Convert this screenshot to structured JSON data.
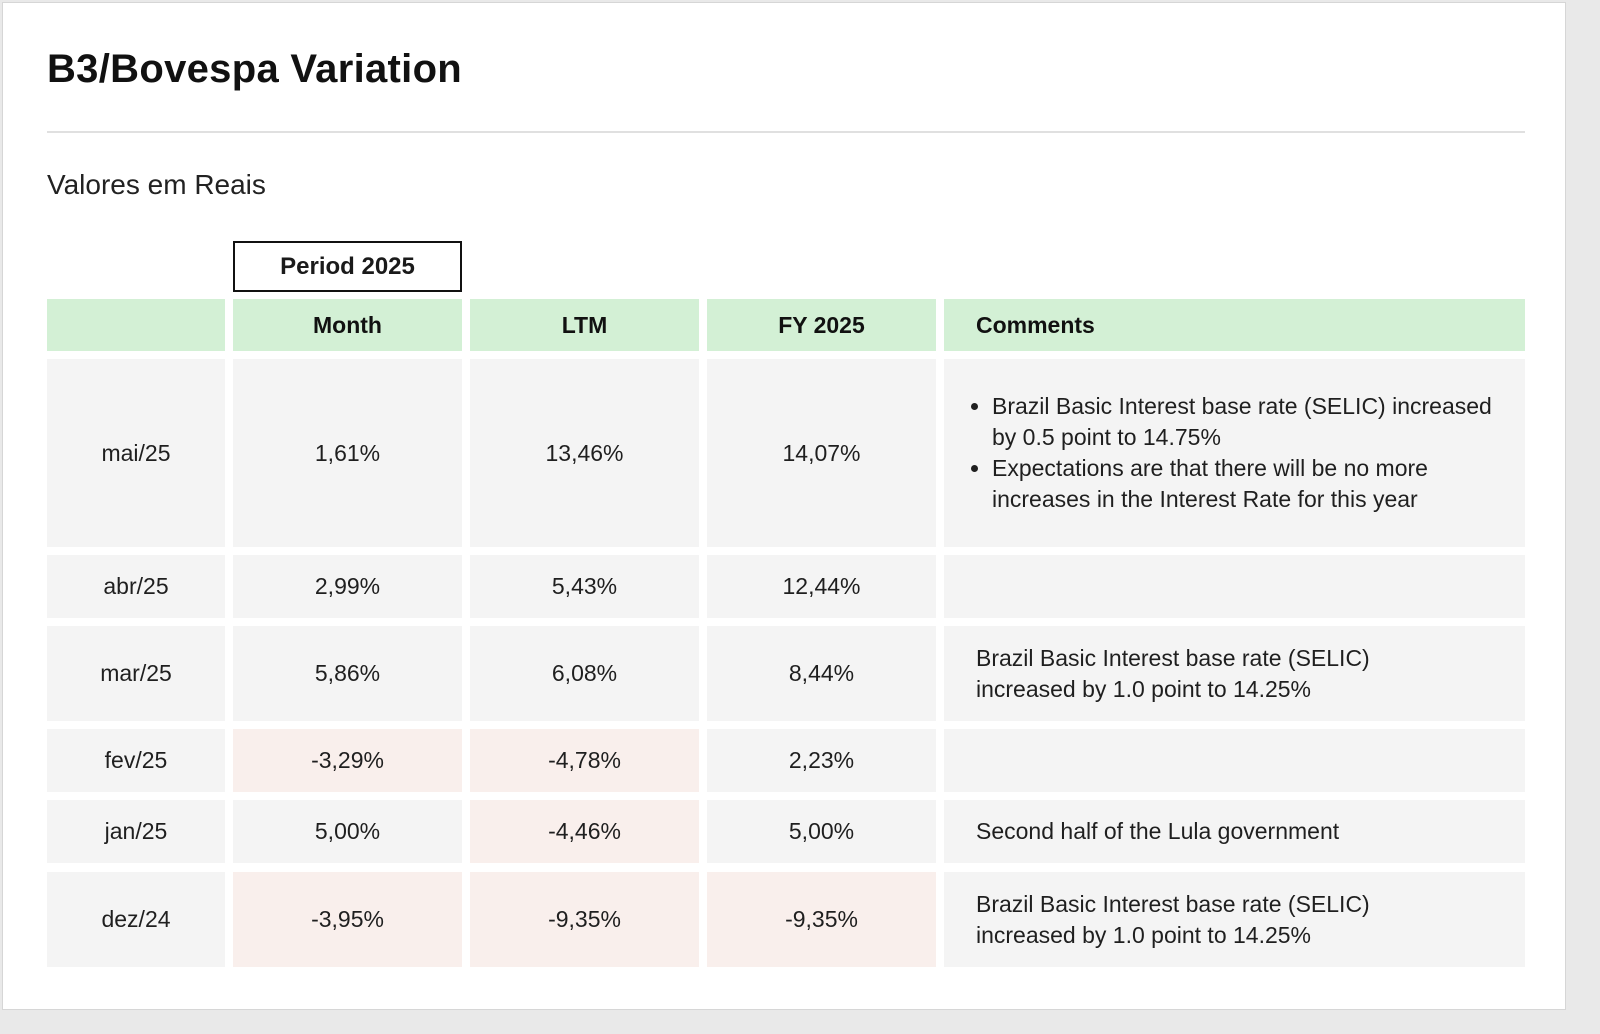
{
  "title": "B3/Bovespa Variation",
  "subtitle": "Valores em Reais",
  "period_label": "Period 2025",
  "headers": [
    "",
    "Month",
    "LTM",
    "FY 2025",
    "Comments"
  ],
  "rows": [
    {
      "date": "mai/25",
      "month": "1,61%",
      "ltm": "13,46%",
      "fy": "14,07%",
      "comment": "",
      "bullets": [
        "Brazil Basic Interest base rate (SELIC) increased by 0.5 point to 14.75%",
        "Expectations are that there will be no more increases in the Interest Rate for this year"
      ]
    },
    {
      "date": "abr/25",
      "month": "2,99%",
      "ltm": "5,43%",
      "fy": "12,44%",
      "comment": ""
    },
    {
      "date": "mar/25",
      "month": "5,86%",
      "ltm": "6,08%",
      "fy": "8,44%",
      "comment": "Brazil Basic Interest base rate (SELIC) increased by 1.0 point to 14.25%"
    },
    {
      "date": "fev/25",
      "month": "-3,29%",
      "ltm": "-4,78%",
      "fy": "2,23%",
      "comment": ""
    },
    {
      "date": "jan/25",
      "month": "5,00%",
      "ltm": "-4,46%",
      "fy": "5,00%",
      "comment": "Second half of the Lula government"
    },
    {
      "date": "dez/24",
      "month": "-3,95%",
      "ltm": "-9,35%",
      "fy": "-9,35%",
      "comment": "Brazil Basic Interest base rate (SELIC) increased by 1.0 point to 14.25%"
    }
  ],
  "colors": {
    "header_bg": "#d3f0d5",
    "cell_bg": "#f4f4f4",
    "negative_bg": "#f9efec"
  }
}
